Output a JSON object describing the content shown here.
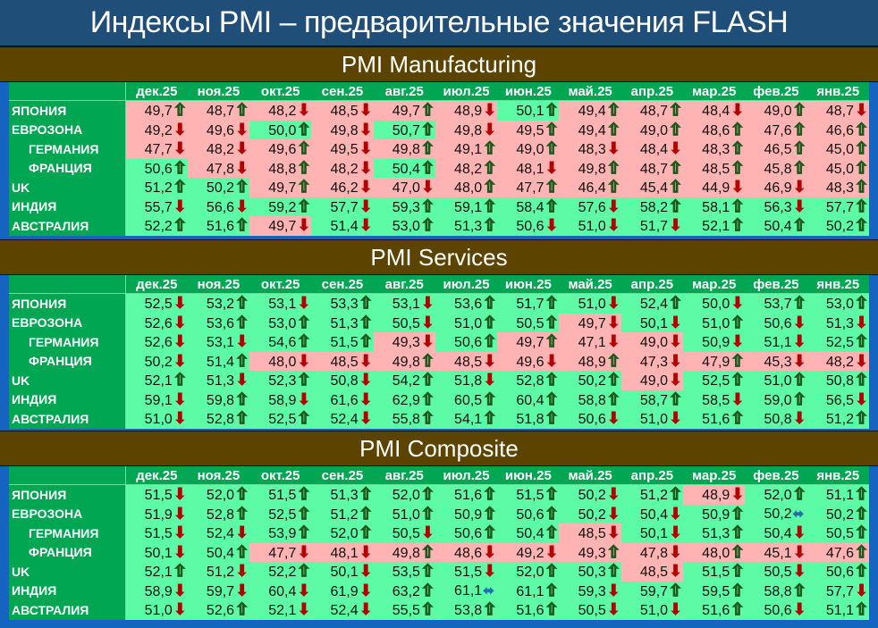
{
  "title": "Индексы PMI – предварительные значения FLASH",
  "colors": {
    "title_bg": "#1f4e79",
    "section_bg": "#5c4400",
    "label_bg": "#00a651",
    "above50": "#5dfba5",
    "below50": "#ffb3b3",
    "arrow_up": "#b7f59a",
    "arrow_down": "#b30000",
    "arrow_flat": "#1f6fb5"
  },
  "months": [
    "дек.25",
    "ноя.25",
    "окт.25",
    "сен.25",
    "авг.25",
    "июл.25",
    "июн.25",
    "май.25",
    "апр.25",
    "мар.25",
    "фев.25",
    "янв.25"
  ],
  "countries": [
    "ЯПОНИЯ",
    "ЕВРОЗОНА",
    "ГЕРМАНИЯ",
    "ФРАНЦИЯ",
    "UK",
    "ИНДИЯ",
    "АВСТРАЛИЯ"
  ],
  "icons": {
    "up": "arrow-up-icon ⇧",
    "down": "arrow-down-icon ⬇",
    "flat": "arrow-left-right-icon ⬌"
  },
  "chart_data": [
    {
      "type": "table",
      "title": "PMI Manufacturing",
      "columns": [
        "дек.25",
        "ноя.25",
        "окт.25",
        "сен.25",
        "авг.25",
        "июл.25",
        "июн.25",
        "май.25",
        "апр.25",
        "мар.25",
        "фев.25",
        "янв.25"
      ],
      "rows": [
        {
          "name": "ЯПОНИЯ",
          "sub": false,
          "values": [
            "49,7",
            "48,7",
            "48,2",
            "48,5",
            "49,7",
            "48,9",
            "50,1",
            "49,4",
            "48,7",
            "48,4",
            "49,0",
            "48,7"
          ],
          "dirs": [
            "u",
            "u",
            "d",
            "d",
            "u",
            "d",
            "u",
            "u",
            "u",
            "d",
            "u",
            "d"
          ]
        },
        {
          "name": "ЕВРОЗОНА",
          "sub": false,
          "values": [
            "49,2",
            "49,6",
            "50,0",
            "49,8",
            "50,7",
            "49,8",
            "49,5",
            "49,4",
            "49,0",
            "48,6",
            "47,6",
            "46,6"
          ],
          "dirs": [
            "d",
            "d",
            "u",
            "d",
            "u",
            "d",
            "u",
            "u",
            "u",
            "u",
            "u",
            "u"
          ]
        },
        {
          "name": "ГЕРМАНИЯ",
          "sub": true,
          "values": [
            "47,7",
            "48,2",
            "49,6",
            "49,5",
            "49,8",
            "49,1",
            "49,0",
            "48,3",
            "48,4",
            "48,3",
            "46,5",
            "45,0"
          ],
          "dirs": [
            "d",
            "d",
            "u",
            "d",
            "u",
            "u",
            "u",
            "d",
            "d",
            "u",
            "u",
            "u"
          ]
        },
        {
          "name": "ФРАНЦИЯ",
          "sub": true,
          "values": [
            "50,6",
            "47,8",
            "48,8",
            "48,2",
            "50,4",
            "48,2",
            "48,1",
            "49,8",
            "48,7",
            "48,5",
            "45,8",
            "45,0"
          ],
          "dirs": [
            "u",
            "d",
            "u",
            "d",
            "u",
            "u",
            "d",
            "u",
            "u",
            "u",
            "u",
            "u"
          ]
        },
        {
          "name": "UK",
          "sub": false,
          "values": [
            "51,2",
            "50,2",
            "49,7",
            "46,2",
            "47,0",
            "48,0",
            "47,7",
            "46,4",
            "45,4",
            "44,9",
            "46,9",
            "48,3"
          ],
          "dirs": [
            "u",
            "u",
            "u",
            "d",
            "d",
            "u",
            "u",
            "u",
            "u",
            "d",
            "d",
            "u"
          ]
        },
        {
          "name": "ИНДИЯ",
          "sub": false,
          "values": [
            "55,7",
            "56,6",
            "59,2",
            "57,7",
            "59,3",
            "59,1",
            "58,4",
            "57,6",
            "58,2",
            "58,1",
            "56,3",
            "57,7"
          ],
          "dirs": [
            "d",
            "d",
            "u",
            "d",
            "u",
            "u",
            "u",
            "d",
            "u",
            "u",
            "d",
            "u"
          ]
        },
        {
          "name": "АВСТРАЛИЯ",
          "sub": false,
          "values": [
            "52,2",
            "51,6",
            "49,7",
            "51,4",
            "53,0",
            "51,3",
            "50,6",
            "51,0",
            "51,7",
            "52,1",
            "50,4",
            "50,2"
          ],
          "dirs": [
            "u",
            "u",
            "d",
            "d",
            "u",
            "u",
            "d",
            "d",
            "d",
            "u",
            "u",
            "u"
          ]
        }
      ]
    },
    {
      "type": "table",
      "title": "PMI Services",
      "columns": [
        "дек.25",
        "ноя.25",
        "окт.25",
        "сен.25",
        "авг.25",
        "июл.25",
        "июн.25",
        "май.25",
        "апр.25",
        "мар.25",
        "фев.25",
        "янв.25"
      ],
      "rows": [
        {
          "name": "ЯПОНИЯ",
          "sub": false,
          "values": [
            "52,5",
            "53,2",
            "53,1",
            "53,3",
            "53,1",
            "53,6",
            "51,7",
            "51,0",
            "52,4",
            "50,0",
            "53,7",
            "53,0"
          ],
          "dirs": [
            "d",
            "u",
            "d",
            "u",
            "d",
            "u",
            "u",
            "d",
            "u",
            "d",
            "u",
            "u"
          ]
        },
        {
          "name": "ЕВРОЗОНА",
          "sub": false,
          "values": [
            "52,6",
            "53,6",
            "53,0",
            "51,3",
            "50,5",
            "51,0",
            "50,5",
            "49,7",
            "50,1",
            "51,0",
            "50,6",
            "51,3"
          ],
          "dirs": [
            "d",
            "u",
            "u",
            "u",
            "d",
            "u",
            "u",
            "d",
            "d",
            "u",
            "d",
            "d"
          ]
        },
        {
          "name": "ГЕРМАНИЯ",
          "sub": true,
          "values": [
            "52,6",
            "53,1",
            "54,6",
            "51,5",
            "49,3",
            "50,6",
            "49,7",
            "47,1",
            "49,0",
            "50,9",
            "51,1",
            "52,5"
          ],
          "dirs": [
            "d",
            "d",
            "u",
            "u",
            "d",
            "u",
            "u",
            "d",
            "d",
            "d",
            "d",
            "u"
          ]
        },
        {
          "name": "ФРАНЦИЯ",
          "sub": true,
          "values": [
            "50,2",
            "51,4",
            "48,0",
            "48,5",
            "49,8",
            "48,5",
            "49,6",
            "48,9",
            "47,3",
            "47,9",
            "45,3",
            "48,2"
          ],
          "dirs": [
            "d",
            "u",
            "d",
            "d",
            "u",
            "d",
            "d",
            "u",
            "d",
            "u",
            "d",
            "d"
          ]
        },
        {
          "name": "UK",
          "sub": false,
          "values": [
            "52,1",
            "51,3",
            "52,3",
            "50,8",
            "54,2",
            "51,8",
            "52,8",
            "50,2",
            "49,0",
            "52,5",
            "51,0",
            "50,8"
          ],
          "dirs": [
            "u",
            "d",
            "u",
            "d",
            "u",
            "d",
            "u",
            "u",
            "d",
            "u",
            "u",
            "u"
          ]
        },
        {
          "name": "ИНДИЯ",
          "sub": false,
          "values": [
            "59,1",
            "59,8",
            "58,9",
            "61,6",
            "62,9",
            "60,5",
            "60,4",
            "58,8",
            "58,7",
            "58,5",
            "59,0",
            "56,5"
          ],
          "dirs": [
            "d",
            "u",
            "d",
            "d",
            "u",
            "u",
            "u",
            "u",
            "u",
            "d",
            "u",
            "d"
          ]
        },
        {
          "name": "АВСТРАЛИЯ",
          "sub": false,
          "values": [
            "51,0",
            "52,8",
            "52,5",
            "52,4",
            "55,8",
            "54,1",
            "51,8",
            "50,6",
            "51,0",
            "51,6",
            "50,8",
            "51,2"
          ],
          "dirs": [
            "d",
            "u",
            "u",
            "d",
            "u",
            "u",
            "u",
            "d",
            "d",
            "u",
            "d",
            "u"
          ]
        }
      ]
    },
    {
      "type": "table",
      "title": "PMI Composite",
      "columns": [
        "дек.25",
        "ноя.25",
        "окт.25",
        "сен.25",
        "авг.25",
        "июл.25",
        "июн.25",
        "май.25",
        "апр.25",
        "мар.25",
        "фев.25",
        "янв.25"
      ],
      "rows": [
        {
          "name": "ЯПОНИЯ",
          "sub": false,
          "values": [
            "51,5",
            "52,0",
            "51,5",
            "51,3",
            "52,0",
            "51,6",
            "51,5",
            "50,2",
            "51,2",
            "48,9",
            "52,0",
            "51,1"
          ],
          "dirs": [
            "d",
            "u",
            "u",
            "u",
            "u",
            "u",
            "u",
            "d",
            "u",
            "d",
            "u",
            "u"
          ]
        },
        {
          "name": "ЕВРОЗОНА",
          "sub": false,
          "values": [
            "51,9",
            "52,8",
            "52,5",
            "51,2",
            "51,0",
            "50,9",
            "50,6",
            "50,2",
            "50,4",
            "50,9",
            "50,2",
            "50,2"
          ],
          "dirs": [
            "d",
            "u",
            "u",
            "u",
            "u",
            "u",
            "u",
            "d",
            "d",
            "u",
            "f",
            "u"
          ]
        },
        {
          "name": "ГЕРМАНИЯ",
          "sub": true,
          "values": [
            "51,5",
            "52,4",
            "53,9",
            "52,0",
            "50,5",
            "50,6",
            "50,4",
            "48,5",
            "50,1",
            "51,3",
            "50,4",
            "50,5"
          ],
          "dirs": [
            "d",
            "d",
            "u",
            "u",
            "d",
            "u",
            "u",
            "d",
            "d",
            "u",
            "d",
            "u"
          ]
        },
        {
          "name": "ФРАНЦИЯ",
          "sub": true,
          "values": [
            "50,1",
            "50,4",
            "47,7",
            "48,1",
            "49,8",
            "48,6",
            "49,2",
            "49,3",
            "47,8",
            "48,0",
            "45,1",
            "47,6"
          ],
          "dirs": [
            "d",
            "u",
            "d",
            "d",
            "u",
            "d",
            "d",
            "u",
            "d",
            "u",
            "d",
            "u"
          ]
        },
        {
          "name": "UK",
          "sub": false,
          "values": [
            "52,1",
            "51,2",
            "52,2",
            "50,1",
            "53,5",
            "51,5",
            "52,0",
            "50,3",
            "48,5",
            "51,5",
            "50,5",
            "50,6"
          ],
          "dirs": [
            "u",
            "d",
            "u",
            "d",
            "u",
            "d",
            "u",
            "u",
            "d",
            "u",
            "d",
            "u"
          ]
        },
        {
          "name": "ИНДИЯ",
          "sub": false,
          "values": [
            "58,9",
            "59,7",
            "60,4",
            "61,9",
            "63,2",
            "61,1",
            "61,1",
            "59,3",
            "59,7",
            "59,5",
            "58,8",
            "57,7"
          ],
          "dirs": [
            "d",
            "d",
            "d",
            "d",
            "u",
            "f",
            "u",
            "d",
            "u",
            "u",
            "u",
            "d"
          ]
        },
        {
          "name": "АВСТРАЛИЯ",
          "sub": false,
          "values": [
            "51,0",
            "52,6",
            "52,1",
            "52,4",
            "55,5",
            "53,8",
            "51,6",
            "50,5",
            "51,0",
            "51,6",
            "50,6",
            "51,1"
          ],
          "dirs": [
            "d",
            "u",
            "d",
            "d",
            "u",
            "u",
            "u",
            "d",
            "d",
            "u",
            "d",
            "u"
          ]
        }
      ]
    }
  ]
}
